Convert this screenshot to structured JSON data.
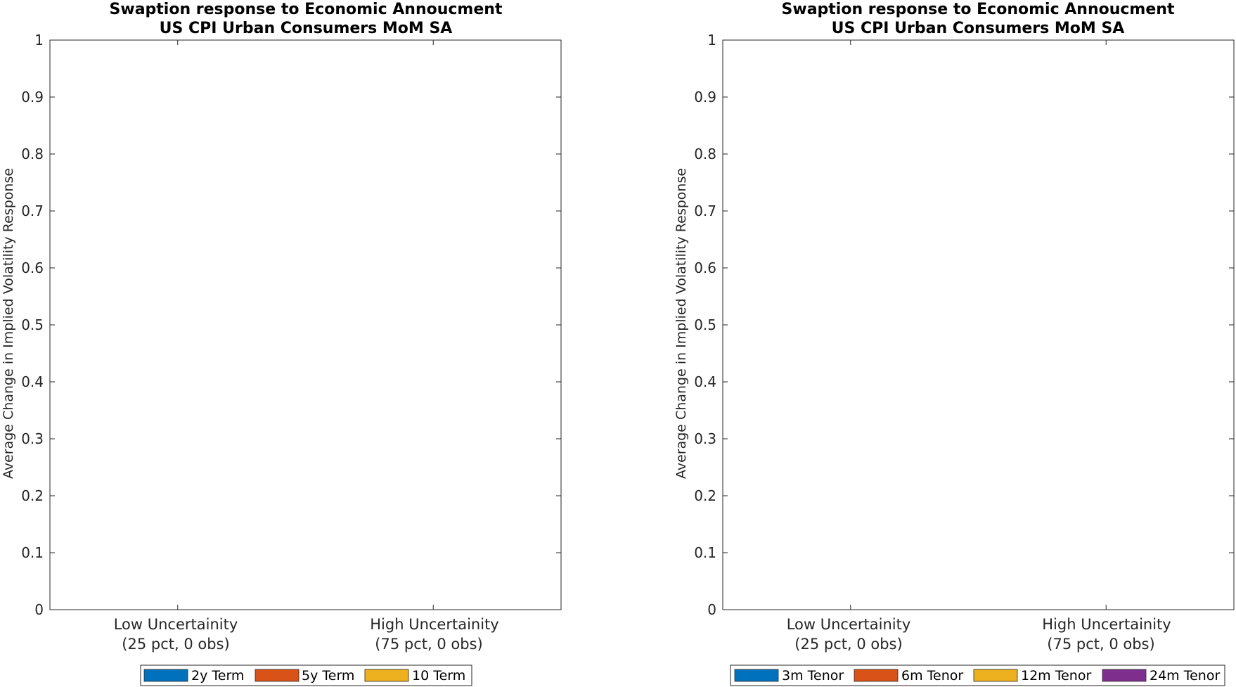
{
  "chart_data": [
    {
      "type": "bar",
      "title": "Swaption response to Economic Annoucment",
      "subtitle": "US CPI Urban Consumers MoM SA",
      "ylabel": "Average Change in Implied Volatility Response",
      "xlabel": "",
      "ylim": [
        0,
        1
      ],
      "yticks": [
        "0",
        "0.1",
        "0.2",
        "0.3",
        "0.4",
        "0.5",
        "0.6",
        "0.7",
        "0.8",
        "0.9",
        "1"
      ],
      "categories": [
        {
          "line1": "Low Uncertainity",
          "line2": "(25 pct, 0 obs)"
        },
        {
          "line1": "High Uncertainity",
          "line2": "(75 pct, 0 obs)"
        }
      ],
      "series": [
        {
          "name": "2y Term",
          "color": "#0072BD",
          "values": [
            null,
            null
          ]
        },
        {
          "name": "5y Term",
          "color": "#D95319",
          "values": [
            null,
            null
          ]
        },
        {
          "name": "10 Term",
          "color": "#EDB120",
          "values": [
            null,
            null
          ]
        }
      ],
      "legend_position": "bottom"
    },
    {
      "type": "bar",
      "title": "Swaption response to Economic Annoucment",
      "subtitle": "US CPI Urban Consumers MoM SA",
      "ylabel": "Average Change in Implied Volatility Response",
      "xlabel": "",
      "ylim": [
        0,
        1
      ],
      "yticks": [
        "0",
        "0.1",
        "0.2",
        "0.3",
        "0.4",
        "0.5",
        "0.6",
        "0.7",
        "0.8",
        "0.9",
        "1"
      ],
      "categories": [
        {
          "line1": "Low Uncertainity",
          "line2": "(25 pct, 0 obs)"
        },
        {
          "line1": "High Uncertainity",
          "line2": "(75 pct, 0 obs)"
        }
      ],
      "series": [
        {
          "name": "3m Tenor",
          "color": "#0072BD",
          "values": [
            null,
            null
          ]
        },
        {
          "name": "6m Tenor",
          "color": "#D95319",
          "values": [
            null,
            null
          ]
        },
        {
          "name": "12m Tenor",
          "color": "#EDB120",
          "values": [
            null,
            null
          ]
        },
        {
          "name": "24m Tenor",
          "color": "#7E2F8E",
          "values": [
            null,
            null
          ]
        }
      ],
      "legend_position": "bottom"
    }
  ]
}
